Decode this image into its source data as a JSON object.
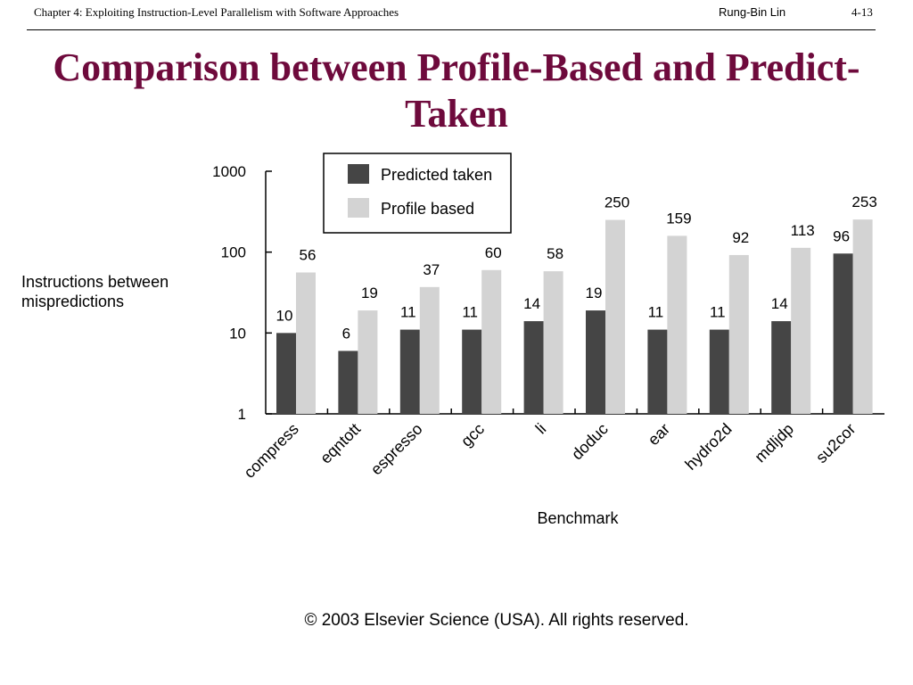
{
  "header": {
    "chapter": "Chapter 4: Exploiting Instruction-Level Parallelism with Software Approaches",
    "author": "Rung-Bin Lin",
    "page": "4-13"
  },
  "slide_title": "Comparison between Profile-Based and Predict-Taken",
  "footer": "© 2003 Elsevier Science (USA). All rights reserved.",
  "colors": {
    "title": "#6e0a3c",
    "predicted_taken": "#454545",
    "profile_based": "#d3d3d3"
  },
  "chart_data": {
    "type": "bar",
    "title": "",
    "xlabel": "Benchmark",
    "ylabel_lines": [
      "Instructions between",
      "mispredictions"
    ],
    "yscale": "log",
    "ylim": [
      1,
      1000
    ],
    "yticks": [
      "1",
      "10",
      "100",
      "1000"
    ],
    "legend_position": "top",
    "categories": [
      "compress",
      "eqntott",
      "espresso",
      "gcc",
      "li",
      "doduc",
      "ear",
      "hydro2d",
      "mdljdp",
      "su2cor"
    ],
    "series": [
      {
        "name": "Predicted taken",
        "values": [
          10,
          6,
          11,
          11,
          14,
          19,
          11,
          11,
          14,
          96
        ]
      },
      {
        "name": "Profile based",
        "values": [
          56,
          19,
          37,
          60,
          58,
          250,
          159,
          92,
          113,
          253
        ]
      }
    ]
  }
}
